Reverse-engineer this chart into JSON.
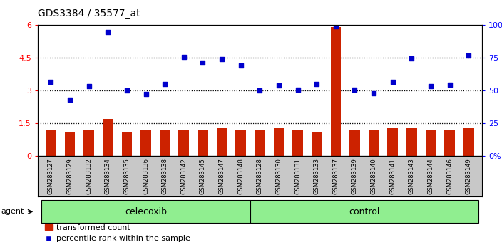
{
  "title": "GDS3384 / 35577_at",
  "samples": [
    "GSM283127",
    "GSM283129",
    "GSM283132",
    "GSM283134",
    "GSM283135",
    "GSM283136",
    "GSM283138",
    "GSM283142",
    "GSM283145",
    "GSM283147",
    "GSM283148",
    "GSM283128",
    "GSM283130",
    "GSM283131",
    "GSM283133",
    "GSM283137",
    "GSM283139",
    "GSM283140",
    "GSM283141",
    "GSM283143",
    "GSM283144",
    "GSM283146",
    "GSM283149"
  ],
  "bar_values": [
    1.2,
    1.1,
    1.2,
    1.7,
    1.1,
    1.2,
    1.2,
    1.2,
    1.2,
    1.3,
    1.2,
    1.2,
    1.3,
    1.2,
    1.1,
    5.9,
    1.2,
    1.2,
    1.3,
    1.3,
    1.2,
    1.2,
    1.3
  ],
  "dot_values": [
    3.4,
    2.6,
    3.2,
    5.7,
    3.0,
    2.85,
    3.3,
    4.55,
    4.3,
    4.45,
    4.15,
    3.0,
    3.25,
    3.05,
    3.3,
    5.95,
    3.05,
    2.88,
    3.4,
    4.48,
    3.22,
    3.28,
    4.62
  ],
  "celecoxib_count": 11,
  "control_count": 12,
  "ylim_left": [
    0,
    6
  ],
  "yticks_left": [
    0,
    1.5,
    3.0,
    4.5,
    6
  ],
  "ytick_labels_left": [
    "0",
    "1.5",
    "3",
    "4.5",
    "6"
  ],
  "yticks_right": [
    0,
    25,
    50,
    75,
    100
  ],
  "ytick_labels_right": [
    "0%",
    "25",
    "50",
    "75",
    "100%"
  ],
  "hlines": [
    1.5,
    3.0,
    4.5
  ],
  "bar_color": "#CC2200",
  "dot_color": "#0000CC",
  "celecoxib_color": "#90EE90",
  "control_color": "#90EE90",
  "agent_label": "agent",
  "celecoxib_label": "celecoxib",
  "control_label": "control",
  "legend_bar_label": "transformed count",
  "legend_dot_label": "percentile rank within the sample"
}
